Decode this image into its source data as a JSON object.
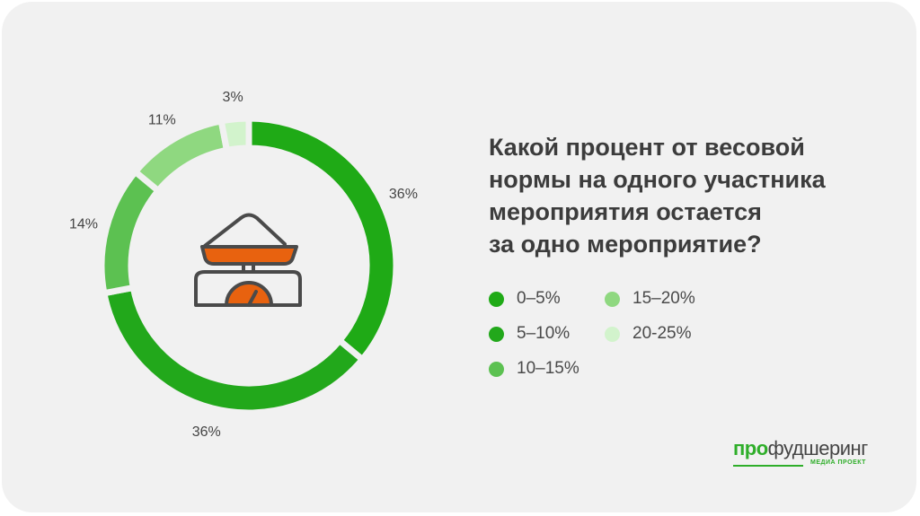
{
  "chart_data": {
    "type": "pie",
    "variant": "donut",
    "title": "Какой процент от весовой нормы на одного участника мероприятия остается за одно мероприятие?",
    "categories": [
      "0–5%",
      "5–10%",
      "10–15%",
      "15–20%",
      "20-25%"
    ],
    "values": [
      36,
      36,
      14,
      11,
      3
    ],
    "data_labels": [
      "36%",
      "36%",
      "14%",
      "11%",
      "3%"
    ],
    "colors": [
      "#1faa16",
      "#22a81b",
      "#5cc151",
      "#8fd880",
      "#d2f3cc"
    ],
    "legend_position": "right"
  },
  "title_lines": [
    "Какой процент от весовой",
    "нормы на одного участника",
    "мероприятия остается",
    "за одно мероприятие?"
  ],
  "logo": {
    "bold": "про",
    "rest": "фудшеринг",
    "sub": "МЕДИА ПРОЕКТ"
  },
  "icon": "kitchen-scale-icon",
  "icon_colors": {
    "stroke": "#4a4a4a",
    "fill": "#e8620f"
  }
}
